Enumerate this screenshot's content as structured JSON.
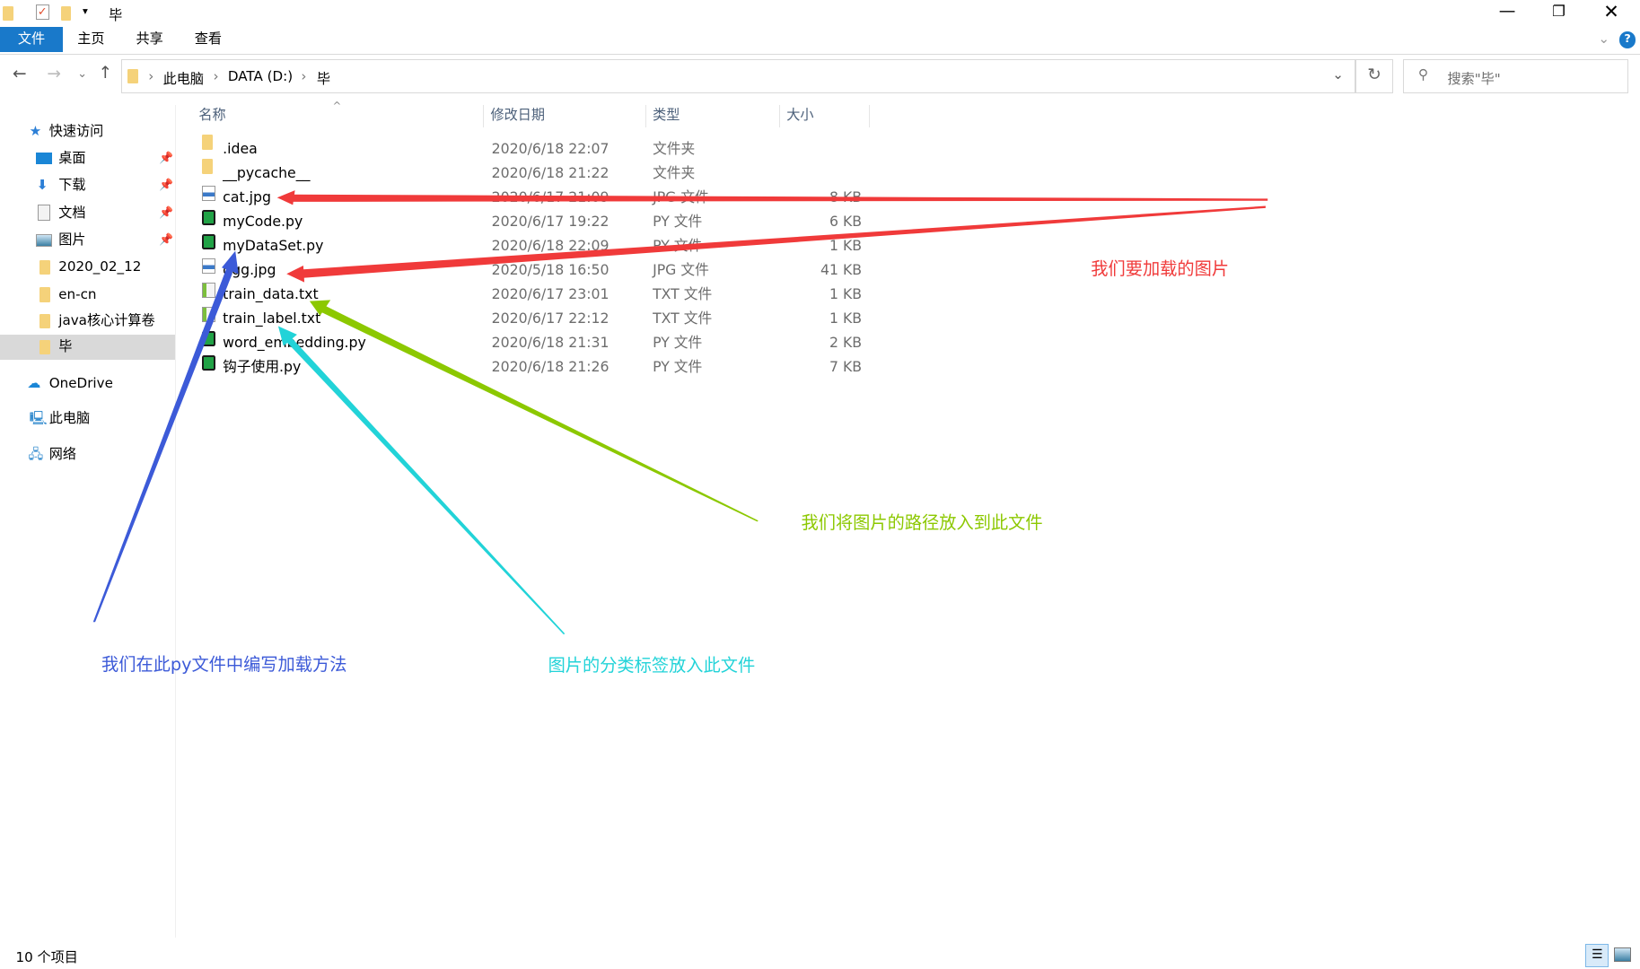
{
  "window": {
    "title": "毕",
    "controls": [
      "minimize",
      "restore",
      "close"
    ]
  },
  "ribbon": {
    "tabs": [
      "文件",
      "主页",
      "共享",
      "查看"
    ],
    "help": "?"
  },
  "address": {
    "crumbs": [
      "此电脑",
      "DATA (D:)",
      "毕"
    ]
  },
  "search": {
    "placeholder": "搜索\"毕\""
  },
  "sidebar": {
    "quick_access": "快速访问",
    "pinned": [
      "桌面",
      "下载",
      "文档",
      "图片"
    ],
    "folders": [
      "2020_02_12",
      "en-cn",
      "java核心计算卷",
      "毕"
    ],
    "selected": "毕",
    "onedrive": "OneDrive",
    "this_pc": "此电脑",
    "network": "网络"
  },
  "columns": [
    "名称",
    "修改日期",
    "类型",
    "大小"
  ],
  "files": [
    {
      "name": ".idea",
      "date": "2020/6/18 22:07",
      "type": "文件夹",
      "size": "",
      "icon": "folder"
    },
    {
      "name": "__pycache__",
      "date": "2020/6/18 21:22",
      "type": "文件夹",
      "size": "",
      "icon": "folder"
    },
    {
      "name": "cat.jpg",
      "date": "2020/6/17 21:09",
      "type": "JPG 文件",
      "size": "8 KB",
      "icon": "jpg"
    },
    {
      "name": "myCode.py",
      "date": "2020/6/17 19:22",
      "type": "PY 文件",
      "size": "6 KB",
      "icon": "py"
    },
    {
      "name": "myDataSet.py",
      "date": "2020/6/18 22:09",
      "type": "PY 文件",
      "size": "1 KB",
      "icon": "py"
    },
    {
      "name": "qgg.jpg",
      "date": "2020/5/18 16:50",
      "type": "JPG 文件",
      "size": "41 KB",
      "icon": "jpg"
    },
    {
      "name": "train_data.txt",
      "date": "2020/6/17 23:01",
      "type": "TXT 文件",
      "size": "1 KB",
      "icon": "txt"
    },
    {
      "name": "train_label.txt",
      "date": "2020/6/17 22:12",
      "type": "TXT 文件",
      "size": "1 KB",
      "icon": "txt"
    },
    {
      "name": "word_embedding.py",
      "date": "2020/6/18 21:31",
      "type": "PY 文件",
      "size": "2 KB",
      "icon": "py"
    },
    {
      "name": "钩子使用.py",
      "date": "2020/6/18 21:26",
      "type": "PY 文件",
      "size": "7 KB",
      "icon": "py"
    }
  ],
  "status": "10 个项目",
  "annotations": {
    "images": "我们要加载的图片",
    "paths": "我们将图片的路径放入到此文件",
    "method": "我们在此py文件中编写加载方法",
    "labels": "图片的分类标签放入此文件"
  },
  "colors": {
    "red": "#f03a3a",
    "green": "#8cc800",
    "blue": "#3c5ad8",
    "cyan": "#22d3d8",
    "accent": "#1979ca"
  }
}
